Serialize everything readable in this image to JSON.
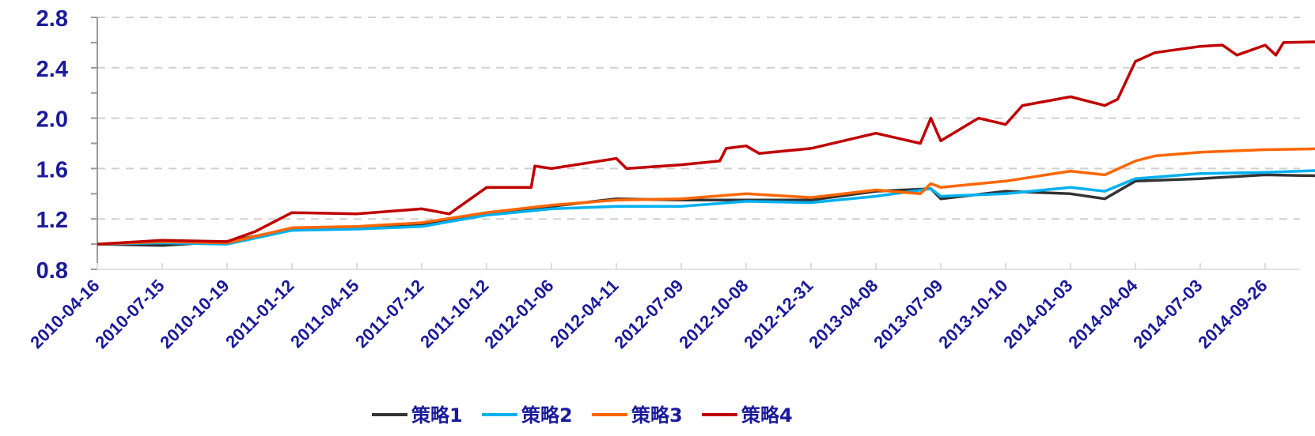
{
  "chart_data": {
    "type": "line",
    "title": "",
    "xlabel": "",
    "ylabel": "",
    "ylim": [
      0.8,
      2.8
    ],
    "yticks": [
      "0.8",
      "1.2",
      "1.6",
      "2.0",
      "2.4",
      "2.8"
    ],
    "grid": "horizontal dashed",
    "legend_position": "bottom",
    "x_tick_labels": [
      "2010-04-16",
      "2010-07-15",
      "2010-10-19",
      "2011-01-12",
      "2011-04-15",
      "2011-07-12",
      "2011-10-12",
      "2012-01-06",
      "2012-04-11",
      "2012-07-09",
      "2012-10-08",
      "2012-12-31",
      "2013-04-08",
      "2013-07-09",
      "2013-10-10",
      "2014-01-03",
      "2014-04-04",
      "2014-07-03",
      "2014-09-26"
    ],
    "series": [
      {
        "name": "策略1",
        "color": "#333333",
        "points": [
          [
            "2010-04-16",
            1.0
          ],
          [
            "2010-07-15",
            0.99
          ],
          [
            "2010-10-19",
            1.02
          ],
          [
            "2011-01-12",
            1.12
          ],
          [
            "2011-04-15",
            1.13
          ],
          [
            "2011-07-12",
            1.16
          ],
          [
            "2011-10-12",
            1.25
          ],
          [
            "2012-01-06",
            1.3
          ],
          [
            "2012-04-11",
            1.36
          ],
          [
            "2012-07-09",
            1.35
          ],
          [
            "2012-10-08",
            1.35
          ],
          [
            "2012-12-31",
            1.35
          ],
          [
            "2013-04-08",
            1.42
          ],
          [
            "2013-06-25",
            1.44
          ],
          [
            "2013-07-09",
            1.36
          ],
          [
            "2013-10-10",
            1.42
          ],
          [
            "2014-01-03",
            1.4
          ],
          [
            "2014-02-20",
            1.36
          ],
          [
            "2014-04-04",
            1.5
          ],
          [
            "2014-07-03",
            1.52
          ],
          [
            "2014-09-26",
            1.55
          ],
          [
            "2014-12-31",
            1.54
          ]
        ]
      },
      {
        "name": "策略2",
        "color": "#00B0F0",
        "points": [
          [
            "2010-04-16",
            1.0
          ],
          [
            "2010-07-15",
            1.01
          ],
          [
            "2010-10-19",
            1.0
          ],
          [
            "2011-01-12",
            1.11
          ],
          [
            "2011-04-15",
            1.12
          ],
          [
            "2011-07-12",
            1.14
          ],
          [
            "2011-10-12",
            1.23
          ],
          [
            "2012-01-06",
            1.28
          ],
          [
            "2012-04-11",
            1.3
          ],
          [
            "2012-07-09",
            1.3
          ],
          [
            "2012-10-08",
            1.34
          ],
          [
            "2012-12-31",
            1.33
          ],
          [
            "2013-04-08",
            1.38
          ],
          [
            "2013-06-25",
            1.44
          ],
          [
            "2013-07-09",
            1.38
          ],
          [
            "2013-10-10",
            1.4
          ],
          [
            "2014-01-03",
            1.45
          ],
          [
            "2014-02-20",
            1.42
          ],
          [
            "2014-04-04",
            1.52
          ],
          [
            "2014-07-03",
            1.56
          ],
          [
            "2014-09-26",
            1.57
          ],
          [
            "2014-12-31",
            1.59
          ]
        ]
      },
      {
        "name": "策略3",
        "color": "#FF6600",
        "points": [
          [
            "2010-04-16",
            1.0
          ],
          [
            "2010-07-15",
            1.02
          ],
          [
            "2010-10-19",
            1.01
          ],
          [
            "2011-01-12",
            1.13
          ],
          [
            "2011-04-15",
            1.14
          ],
          [
            "2011-07-12",
            1.17
          ],
          [
            "2011-10-12",
            1.25
          ],
          [
            "2012-01-06",
            1.31
          ],
          [
            "2012-04-11",
            1.35
          ],
          [
            "2012-07-09",
            1.36
          ],
          [
            "2012-10-08",
            1.4
          ],
          [
            "2012-12-31",
            1.37
          ],
          [
            "2013-04-08",
            1.43
          ],
          [
            "2013-06-10",
            1.4
          ],
          [
            "2013-06-25",
            1.48
          ],
          [
            "2013-07-09",
            1.45
          ],
          [
            "2013-10-10",
            1.5
          ],
          [
            "2014-01-03",
            1.58
          ],
          [
            "2014-02-20",
            1.55
          ],
          [
            "2014-04-04",
            1.66
          ],
          [
            "2014-05-01",
            1.7
          ],
          [
            "2014-07-03",
            1.73
          ],
          [
            "2014-09-26",
            1.75
          ],
          [
            "2014-12-31",
            1.76
          ]
        ]
      },
      {
        "name": "策略4",
        "color": "#C00000",
        "points": [
          [
            "2010-04-16",
            1.0
          ],
          [
            "2010-07-15",
            1.03
          ],
          [
            "2010-10-19",
            1.02
          ],
          [
            "2010-11-25",
            1.1
          ],
          [
            "2011-01-12",
            1.25
          ],
          [
            "2011-04-15",
            1.24
          ],
          [
            "2011-07-12",
            1.28
          ],
          [
            "2011-08-20",
            1.24
          ],
          [
            "2011-10-12",
            1.45
          ],
          [
            "2011-12-10",
            1.45
          ],
          [
            "2011-12-15",
            1.62
          ],
          [
            "2012-01-06",
            1.6
          ],
          [
            "2012-04-11",
            1.68
          ],
          [
            "2012-04-25",
            1.6
          ],
          [
            "2012-07-09",
            1.63
          ],
          [
            "2012-09-01",
            1.66
          ],
          [
            "2012-09-10",
            1.76
          ],
          [
            "2012-10-08",
            1.78
          ],
          [
            "2012-10-25",
            1.72
          ],
          [
            "2012-12-31",
            1.76
          ],
          [
            "2013-04-08",
            1.88
          ],
          [
            "2013-06-10",
            1.8
          ],
          [
            "2013-06-25",
            2.0
          ],
          [
            "2013-07-09",
            1.82
          ],
          [
            "2013-09-01",
            2.0
          ],
          [
            "2013-10-10",
            1.95
          ],
          [
            "2013-11-01",
            2.1
          ],
          [
            "2014-01-03",
            2.17
          ],
          [
            "2014-02-20",
            2.1
          ],
          [
            "2014-03-10",
            2.15
          ],
          [
            "2014-04-04",
            2.45
          ],
          [
            "2014-05-01",
            2.52
          ],
          [
            "2014-07-03",
            2.57
          ],
          [
            "2014-08-01",
            2.58
          ],
          [
            "2014-08-20",
            2.5
          ],
          [
            "2014-09-26",
            2.58
          ],
          [
            "2014-10-10",
            2.5
          ],
          [
            "2014-10-20",
            2.6
          ],
          [
            "2014-12-31",
            2.61
          ]
        ]
      }
    ]
  }
}
